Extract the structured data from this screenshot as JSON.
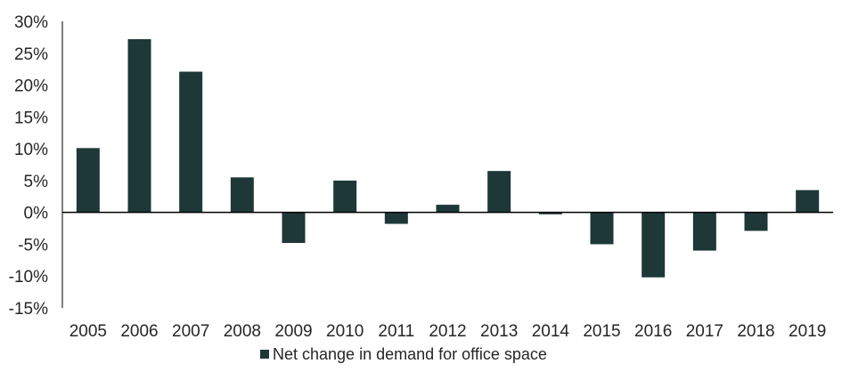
{
  "chart_data": {
    "type": "bar",
    "title": "",
    "xlabel": "",
    "ylabel": "",
    "categories": [
      "2005",
      "2006",
      "2007",
      "2008",
      "2009",
      "2010",
      "2011",
      "2012",
      "2013",
      "2014",
      "2015",
      "2016",
      "2017",
      "2018",
      "2019"
    ],
    "series": [
      {
        "name": "Net change in demand for office space",
        "color": "#1e3838",
        "values": [
          10.1,
          27.2,
          22.1,
          5.5,
          -4.8,
          5.0,
          -1.8,
          1.2,
          6.5,
          -0.3,
          -5.0,
          -10.2,
          -6.0,
          -2.9,
          3.5
        ]
      }
    ],
    "ylim": [
      -15,
      30
    ],
    "yticks": [
      30,
      25,
      20,
      15,
      10,
      5,
      0,
      -5,
      -10,
      -15
    ],
    "ytick_labels": [
      "30%",
      "25%",
      "20%",
      "15%",
      "10%",
      "5%",
      "0%",
      "-5%",
      "-10%",
      "-15%"
    ],
    "grid": false,
    "legend": "bottom"
  }
}
